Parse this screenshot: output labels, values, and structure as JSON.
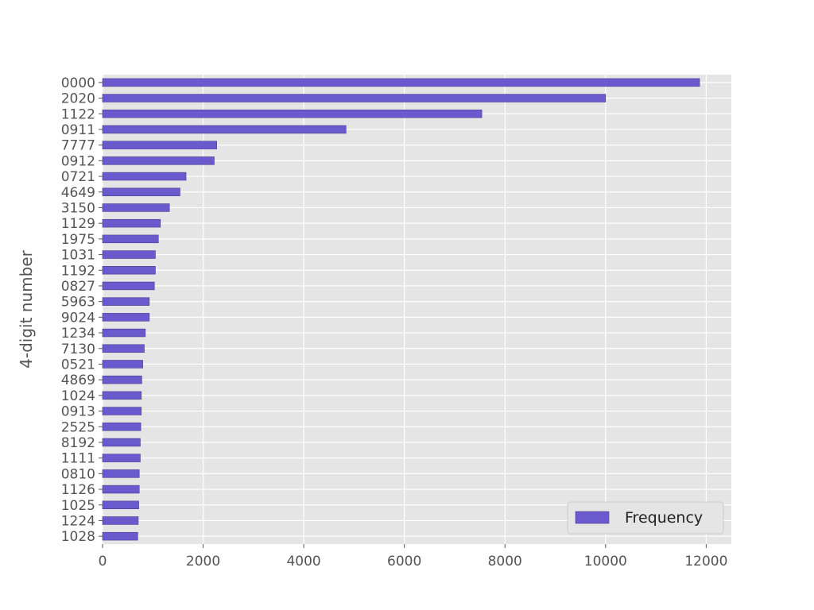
{
  "chart_data": {
    "type": "bar",
    "orientation": "horizontal",
    "title": "",
    "xlabel": "",
    "ylabel": "4-digit number",
    "categories": [
      "0000",
      "2020",
      "1122",
      "0911",
      "7777",
      "0912",
      "0721",
      "4649",
      "3150",
      "1129",
      "1975",
      "1031",
      "1192",
      "0827",
      "5963",
      "9024",
      "1234",
      "7130",
      "0521",
      "4869",
      "1024",
      "0913",
      "2525",
      "8192",
      "1111",
      "0810",
      "1126",
      "1025",
      "1224",
      "1028"
    ],
    "series": [
      {
        "name": "Frequency",
        "color": "#6a5acd",
        "values": [
          11870,
          10000,
          7540,
          4840,
          2270,
          2220,
          1660,
          1540,
          1330,
          1150,
          1110,
          1050,
          1050,
          1030,
          930,
          930,
          850,
          830,
          800,
          780,
          770,
          770,
          760,
          750,
          750,
          730,
          730,
          720,
          710,
          700
        ]
      }
    ],
    "xlim": [
      0,
      12500
    ],
    "xticks": [
      0,
      2000,
      4000,
      6000,
      8000,
      10000,
      12000
    ],
    "grid": true,
    "legend": "lower right",
    "style": {
      "background": "#e5e5e5",
      "grid_color": "#ffffff",
      "bar_color": "#6a5acd",
      "bar_edge_color": "#483d8b"
    }
  }
}
